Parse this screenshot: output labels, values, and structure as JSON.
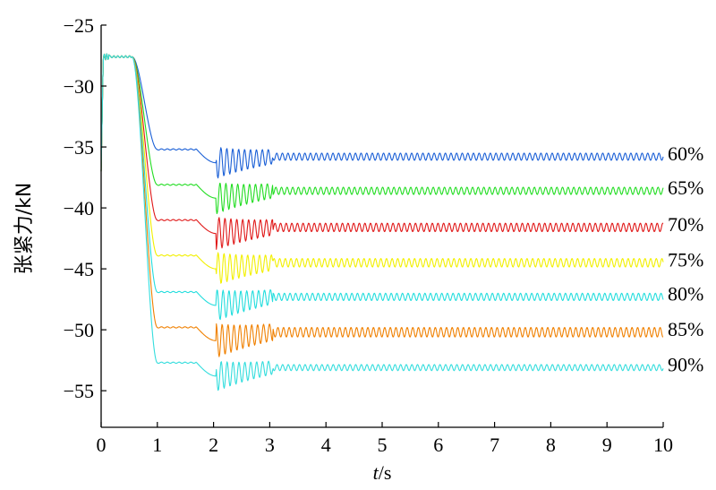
{
  "chart_data": {
    "type": "line",
    "xlabel_italic": "t",
    "xlabel_unit": "/s",
    "ylabel": "张紧力/kN",
    "xlim": [
      0,
      10
    ],
    "ylim": [
      -58,
      -25
    ],
    "x_ticks": [
      0,
      1,
      2,
      3,
      4,
      5,
      6,
      7,
      8,
      9,
      10
    ],
    "y_ticks": [
      -25,
      -30,
      -35,
      -40,
      -45,
      -50,
      -55
    ],
    "x_tick_labels": [
      "0",
      "1",
      "2",
      "3",
      "4",
      "5",
      "6",
      "7",
      "8",
      "9",
      "10"
    ],
    "y_tick_labels": [
      "−25",
      "−30",
      "−35",
      "−40",
      "−45",
      "−50",
      "−55"
    ],
    "grid": false,
    "legend": "inline labels at right end of each series",
    "initial_value": -27.6,
    "series": [
      {
        "name": "60%",
        "color": "#1a5fd6",
        "plateau": -35.2,
        "steady": -35.8,
        "amplitude": 0.3
      },
      {
        "name": "65%",
        "color": "#22dd22",
        "plateau": -38.1,
        "steady": -38.6,
        "amplitude": 0.3
      },
      {
        "name": "70%",
        "color": "#e01818",
        "plateau": -41.0,
        "steady": -41.6,
        "amplitude": 0.35
      },
      {
        "name": "75%",
        "color": "#f2f000",
        "plateau": -43.9,
        "steady": -44.5,
        "amplitude": 0.35
      },
      {
        "name": "80%",
        "color": "#22dddd",
        "plateau": -46.9,
        "steady": -47.3,
        "amplitude": 0.3
      },
      {
        "name": "85%",
        "color": "#f08000",
        "plateau": -49.8,
        "steady": -50.2,
        "amplitude": 0.4
      },
      {
        "name": "90%",
        "color": "#33dddd",
        "plateau": -52.7,
        "steady": -53.1,
        "amplitude": 0.25
      }
    ]
  }
}
